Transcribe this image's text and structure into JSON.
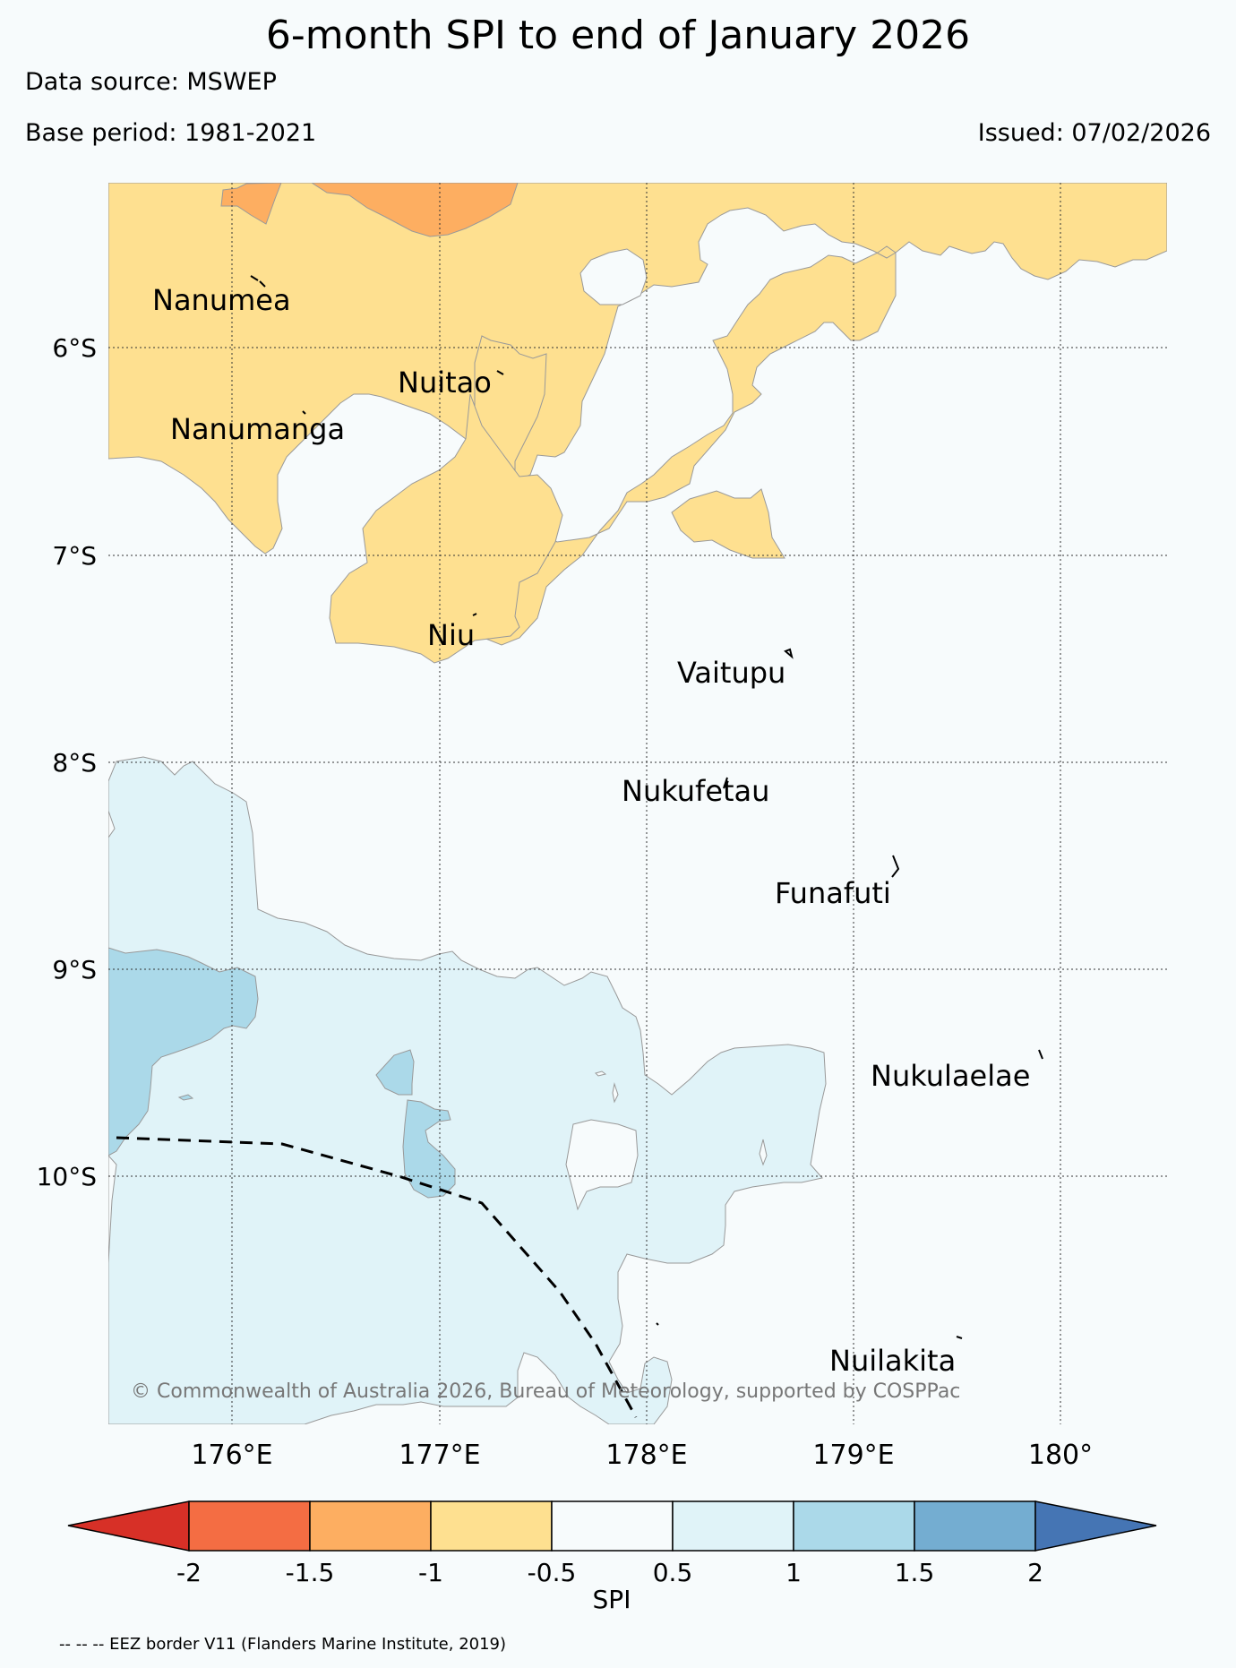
{
  "title": "6-month SPI to end of January 2026",
  "data_source": "Data source: MSWEP",
  "base_period": "Base period: 1981-2021",
  "issued": "Issued: 07/02/2026",
  "copyright": "© Commonwealth of Australia 2026, Bureau of Meteorology, supported by COSPPac",
  "lat_labels": [
    "6°S",
    "7°S",
    "8°S",
    "9°S",
    "10°S"
  ],
  "lon_labels": [
    "176°E",
    "177°E",
    "178°E",
    "179°E",
    "180°"
  ],
  "places": [
    "Nanumea",
    "Nuitao",
    "Nanumanga",
    "Niu",
    "Vaitupu",
    "Nukufetau",
    "Funafuti",
    "Nukulaelae",
    "Nuilakita"
  ],
  "colorbar": {
    "label": "SPI",
    "ticks": [
      "-2",
      "-1.5",
      "-1",
      "-0.5",
      "0.5",
      "1",
      "1.5",
      "2"
    ],
    "colors": {
      "below_-2": "#d73027",
      "-2_-1.5": "#f46d43",
      "-1.5_-1": "#fdae61",
      "-1_-0.5": "#fee090",
      "-0.5_0.5": "#f7fbfc",
      "0.5_1": "#e0f3f8",
      "1_1.5": "#abd9e9",
      "1.5_2": "#74add1",
      "above_2": "#4575b4"
    }
  },
  "footnote": "-- -- -- EEZ border V11 (Flanders Marine Institute, 2019)"
}
